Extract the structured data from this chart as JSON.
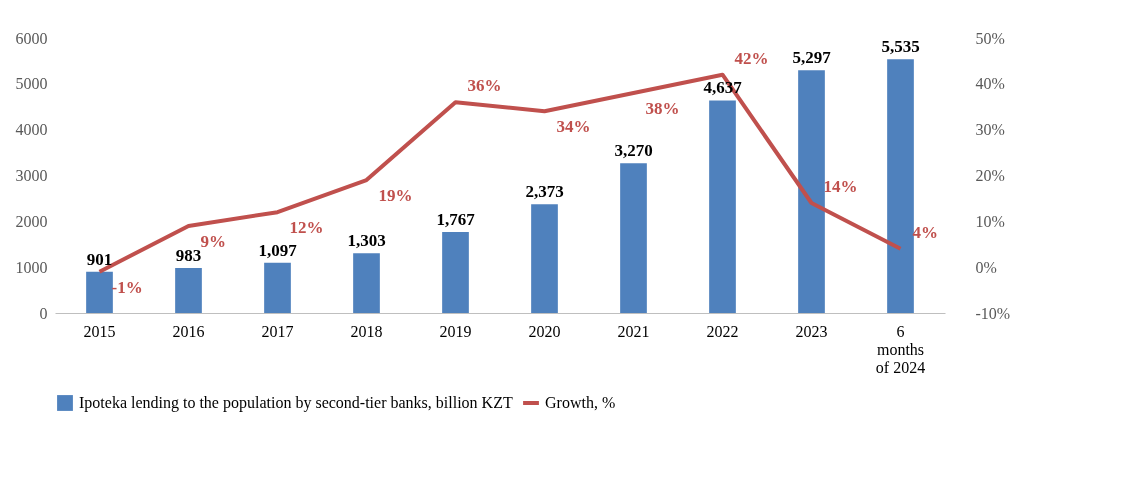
{
  "chart_data": {
    "type": "bar",
    "categories": [
      "2015",
      "2016",
      "2017",
      "2018",
      "2019",
      "2020",
      "2021",
      "2022",
      "2023",
      "6 months of 2024"
    ],
    "series": [
      {
        "name": "Ipoteka lending to the population by second-tier banks, billion KZT",
        "color": "#4f81bd",
        "values": [
          901,
          983,
          1097,
          1303,
          1767,
          2373,
          3270,
          4637,
          5297,
          5535
        ],
        "value_labels": [
          "901",
          "983",
          "1,097",
          "1,303",
          "1,767",
          "2,373",
          "3,270",
          "4,637",
          "5,297",
          "5,535"
        ]
      },
      {
        "name": "Growth, %",
        "type": "line",
        "axis": "y2",
        "color": "#c0504d",
        "values": [
          -1,
          9,
          12,
          19,
          36,
          34,
          38,
          42,
          14,
          4
        ],
        "value_labels": [
          "-1%",
          "9%",
          "12%",
          "19%",
          "36%",
          "34%",
          "38%",
          "42%",
          "14%",
          "4%"
        ]
      }
    ],
    "ylim": [
      0,
      6000
    ],
    "yticks": [
      0,
      1000,
      2000,
      3000,
      4000,
      5000,
      6000
    ],
    "y2lim": [
      -10,
      50
    ],
    "y2ticks": [
      {
        "value": -10,
        "label": "-10%"
      },
      {
        "value": 0,
        "label": "0%"
      },
      {
        "value": 10,
        "label": "10%"
      },
      {
        "value": 20,
        "label": "20%"
      },
      {
        "value": 30,
        "label": "30%"
      },
      {
        "value": 40,
        "label": "40%"
      },
      {
        "value": 50,
        "label": "50%"
      }
    ],
    "grid": false,
    "legend": "bottom",
    "line_style": "solid"
  }
}
